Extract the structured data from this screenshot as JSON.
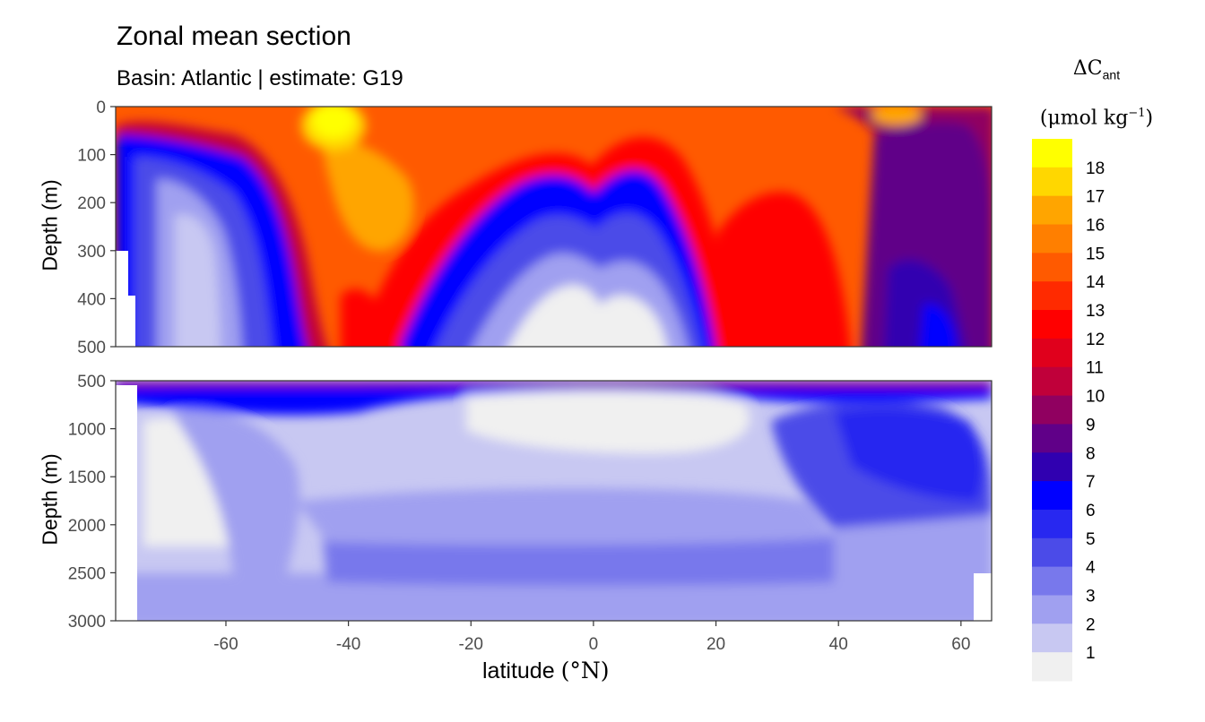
{
  "chart_data": {
    "type": "heatmap",
    "title": "Zonal mean section",
    "subtitle": "Basin: Atlantic | estimate: G19",
    "xlabel_text": "latitude",
    "xlabel_unit": "(°N)",
    "ylabel": "Depth (m)",
    "xlim": [
      -78,
      65
    ],
    "x_ticks": [
      "-60",
      "-40",
      "-20",
      "0",
      "20",
      "40",
      "60"
    ],
    "x_tick_values": [
      -60,
      -40,
      -20,
      0,
      20,
      40,
      60
    ],
    "panels": [
      {
        "ylim": [
          0,
          500
        ],
        "y_ticks": [
          "0",
          "100",
          "200",
          "300",
          "400",
          "500"
        ],
        "y_tick_values": [
          0,
          100,
          200,
          300,
          400,
          500
        ]
      },
      {
        "ylim": [
          500,
          3000
        ],
        "y_ticks": [
          "500",
          "1000",
          "1500",
          "2000",
          "2500",
          "3000"
        ],
        "y_tick_values": [
          500,
          1000,
          1500,
          2000,
          2500,
          3000
        ]
      }
    ],
    "legend": {
      "title_main": "ΔC",
      "title_sub": "ant",
      "unit_prefix": "(μmol kg",
      "unit_sup": "−1",
      "unit_suffix": ")",
      "placement": "right",
      "labels": [
        "18",
        "17",
        "16",
        "15",
        "14",
        "13",
        "12",
        "11",
        "10",
        "9",
        "8",
        "7",
        "6",
        "5",
        "4",
        "3",
        "2",
        "1"
      ],
      "colors": [
        "#ffff00",
        "#ffd700",
        "#ffa500",
        "#ff7f00",
        "#ff5a00",
        "#ff2a00",
        "#ff0000",
        "#e0001c",
        "#c0003a",
        "#900060",
        "#600088",
        "#3000b0",
        "#0000ff",
        "#2828f0",
        "#4b4be8",
        "#7878ec",
        "#a0a0f0",
        "#c8c8f2",
        "#f0f0f0"
      ]
    }
  }
}
